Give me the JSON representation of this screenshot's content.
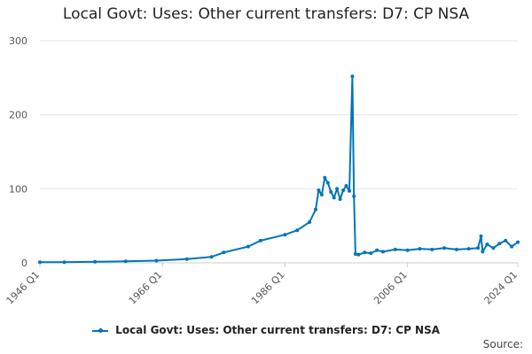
{
  "chart_data": {
    "type": "line",
    "title": "Local Govt: Uses: Other current transfers: D7: CP NSA",
    "xlabel": "",
    "ylabel": "",
    "ylim": [
      0,
      300
    ],
    "yticks": [
      0,
      100,
      200,
      300
    ],
    "xticks": [
      "1946 Q1",
      "1966 Q1",
      "1986 Q1",
      "2006 Q1",
      "2024 Q1"
    ],
    "grid": true,
    "legend_placement": "bottom",
    "color": "#0075b8",
    "series": [
      {
        "name": "Local Govt: Uses: Other current transfers: D7: CP NSA",
        "points": [
          [
            "1946 Q1",
            1
          ],
          [
            "1950 Q1",
            1
          ],
          [
            "1955 Q1",
            1.5
          ],
          [
            "1960 Q1",
            2
          ],
          [
            "1965 Q1",
            3
          ],
          [
            "1970 Q1",
            5
          ],
          [
            "1974 Q1",
            8
          ],
          [
            "1976 Q1",
            14
          ],
          [
            "1980 Q1",
            22
          ],
          [
            "1982 Q1",
            30
          ],
          [
            "1986 Q1",
            38
          ],
          [
            "1988 Q1",
            44
          ],
          [
            "1990 Q1",
            55
          ],
          [
            "1991 Q1",
            72
          ],
          [
            "1991 Q3",
            98
          ],
          [
            "1992 Q1",
            92
          ],
          [
            "1992 Q3",
            115
          ],
          [
            "1993 Q1",
            108
          ],
          [
            "1993 Q3",
            96
          ],
          [
            "1994 Q1",
            88
          ],
          [
            "1994 Q3",
            100
          ],
          [
            "1995 Q1",
            86
          ],
          [
            "1995 Q3",
            98
          ],
          [
            "1996 Q1",
            104
          ],
          [
            "1996 Q3",
            97
          ],
          [
            "1997 Q1",
            252
          ],
          [
            "1997 Q2",
            90
          ],
          [
            "1997 Q3",
            12
          ],
          [
            "1998 Q1",
            11
          ],
          [
            "1999 Q1",
            14
          ],
          [
            "2000 Q1",
            13
          ],
          [
            "2001 Q1",
            17
          ],
          [
            "2002 Q1",
            15
          ],
          [
            "2004 Q1",
            18
          ],
          [
            "2006 Q1",
            17
          ],
          [
            "2008 Q1",
            19
          ],
          [
            "2010 Q1",
            18
          ],
          [
            "2012 Q1",
            20
          ],
          [
            "2014 Q1",
            18
          ],
          [
            "2016 Q1",
            19
          ],
          [
            "2017 Q3",
            20
          ],
          [
            "2018 Q1",
            36
          ],
          [
            "2018 Q2",
            15
          ],
          [
            "2019 Q1",
            25
          ],
          [
            "2020 Q1",
            20
          ],
          [
            "2021 Q1",
            26
          ],
          [
            "2022 Q1",
            30
          ],
          [
            "2023 Q1",
            22
          ],
          [
            "2024 Q1",
            28
          ]
        ]
      }
    ]
  },
  "source_label": "Source:"
}
